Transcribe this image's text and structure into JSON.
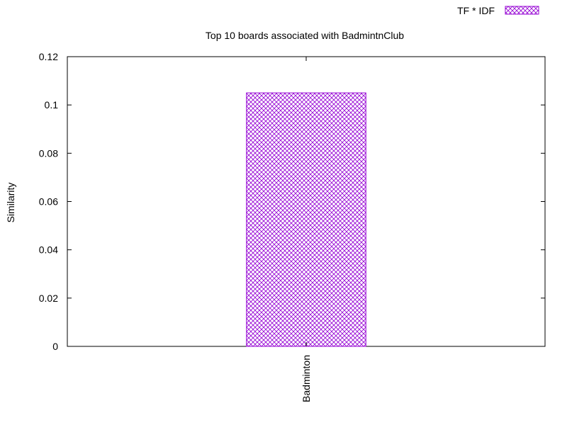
{
  "chart_data": {
    "type": "bar",
    "title": "Top 10 boards associated with BadmintnClub",
    "xlabel": "",
    "ylabel": "Similarity",
    "ylim": [
      0,
      0.12
    ],
    "yticks": [
      "0",
      "0.02",
      "0.04",
      "0.06",
      "0.08",
      "0.1",
      "0.12"
    ],
    "categories": [
      "Badminton"
    ],
    "series": [
      {
        "name": "TF * IDF",
        "values": [
          0.105
        ],
        "color": "#9400d3",
        "pattern": "crosshatch"
      }
    ],
    "legend_position": "top-right",
    "grid": false
  }
}
